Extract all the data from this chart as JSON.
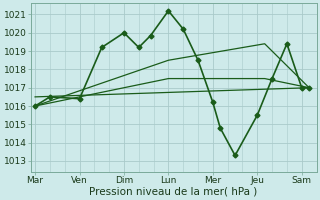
{
  "background_color": "#ceeaea",
  "grid_color": "#aacaca",
  "line_color": "#1a5c1a",
  "xtick_labels": [
    "Mar",
    "Ven",
    "Dim",
    "Lun",
    "Mer",
    "Jeu",
    "Sam"
  ],
  "xtick_positions": [
    0,
    3,
    6,
    9,
    12,
    15,
    18
  ],
  "ytick_values": [
    1013,
    1014,
    1015,
    1016,
    1017,
    1018,
    1019,
    1020,
    1021
  ],
  "ylim": [
    1012.4,
    1021.6
  ],
  "xlim": [
    -0.3,
    19.0
  ],
  "xlabel": "Pression niveau de la mer( hPa )",
  "series": [
    {
      "x": [
        0,
        1.0,
        3.0,
        4.5,
        6.0,
        7.0,
        7.8,
        9.0,
        10.0,
        11.0,
        12.0,
        12.5,
        13.5,
        15.0,
        16.0,
        17.0,
        18.0,
        18.5
      ],
      "y": [
        1016.0,
        1016.5,
        1016.4,
        1019.2,
        1020.0,
        1019.2,
        1019.85,
        1021.2,
        1020.2,
        1018.5,
        1016.2,
        1014.8,
        1013.3,
        1015.5,
        1017.5,
        1019.4,
        1017.0,
        1017.0
      ],
      "marker": "D",
      "markersize": 2.5,
      "linewidth": 1.2
    },
    {
      "x": [
        0,
        9,
        15.5,
        18.5
      ],
      "y": [
        1016.0,
        1018.5,
        1019.4,
        1017.0
      ],
      "marker": null,
      "linewidth": 0.9
    },
    {
      "x": [
        0,
        9,
        15.5,
        18.5
      ],
      "y": [
        1016.0,
        1017.5,
        1017.5,
        1017.0
      ],
      "marker": null,
      "linewidth": 0.9
    },
    {
      "x": [
        0,
        18.5
      ],
      "y": [
        1016.5,
        1017.0
      ],
      "marker": null,
      "linewidth": 0.9
    }
  ]
}
